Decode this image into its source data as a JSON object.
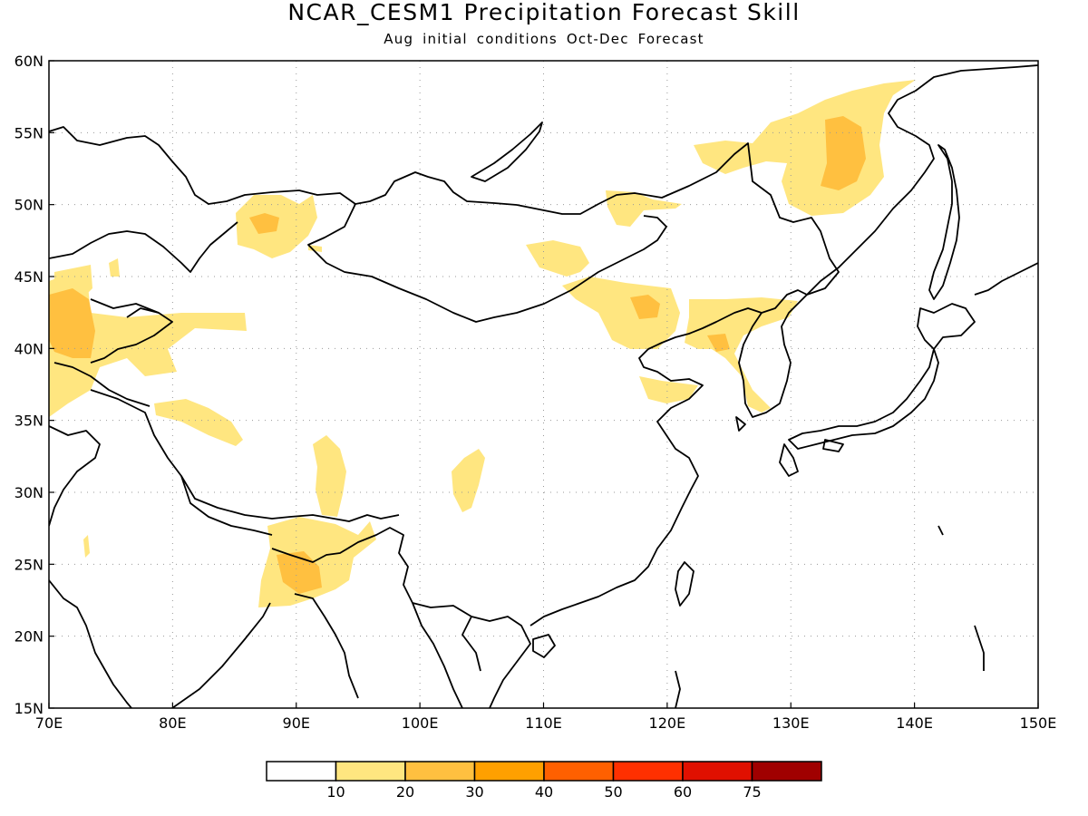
{
  "title": "NCAR_CESM1 Precipitation Forecast Skill",
  "subtitle": "Aug initial conditions  Oct-Dec Forecast",
  "map": {
    "lon_range": [
      70,
      150
    ],
    "lat_range": [
      15,
      60
    ],
    "lon_ticks": [
      "70E",
      "80E",
      "90E",
      "100E",
      "110E",
      "120E",
      "130E",
      "140E",
      "150E"
    ],
    "lat_ticks": [
      "15N",
      "20N",
      "25N",
      "30N",
      "35N",
      "40N",
      "45N",
      "50N",
      "55N",
      "60N"
    ],
    "gridlines": true
  },
  "colorbar": {
    "labels": [
      "10",
      "20",
      "30",
      "40",
      "50",
      "60",
      "75"
    ],
    "colors": [
      "#ffffff",
      "#ffe680",
      "#ffc040",
      "#ffa000",
      "#ff6000",
      "#ff3000",
      "#e01000",
      "#a00000"
    ]
  }
}
